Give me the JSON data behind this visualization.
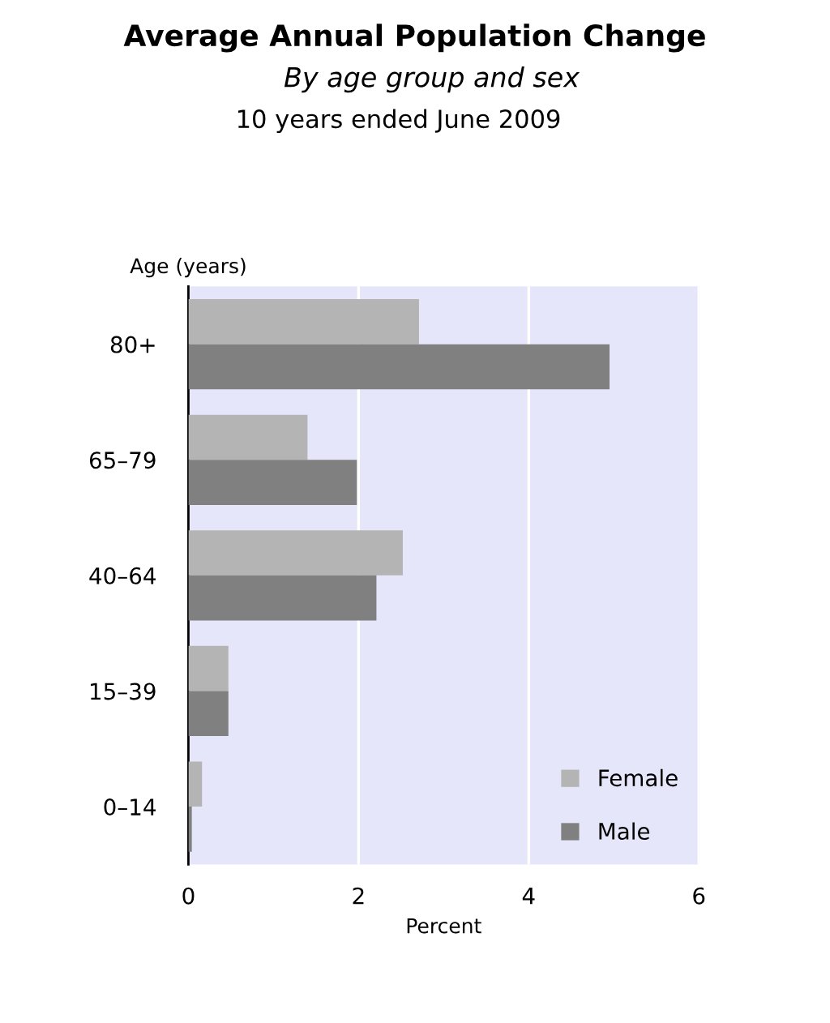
{
  "chart_data": {
    "type": "bar",
    "orientation": "horizontal",
    "title": "Average Annual Population Change",
    "subtitle": "By age group and sex",
    "annotations": [
      "10 years ended June 2009"
    ],
    "xlabel": "Percent",
    "ylabel": "Age (years)",
    "categories": [
      "80+",
      "65–79",
      "40–64",
      "15–39",
      "0–14"
    ],
    "series": [
      {
        "name": "Female",
        "color": "#b4b4b4",
        "values": [
          2.71,
          1.4,
          2.52,
          0.47,
          0.16
        ]
      },
      {
        "name": "Male",
        "color": "#808080",
        "values": [
          4.95,
          1.98,
          2.21,
          0.47,
          0.04
        ]
      }
    ],
    "xlim": [
      0,
      6
    ],
    "xticks": [
      0,
      2,
      4,
      6
    ],
    "grid": "x",
    "legend": "bottom right"
  }
}
